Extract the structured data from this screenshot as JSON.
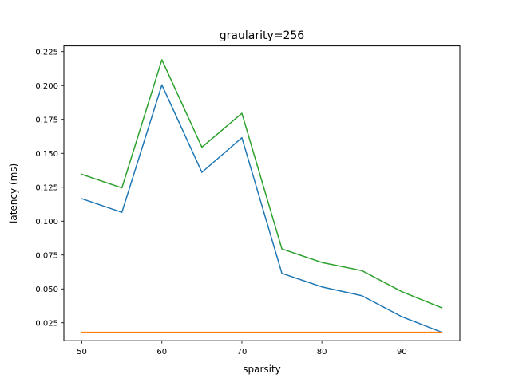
{
  "chart_data": {
    "type": "line",
    "title": "graularity=256",
    "xlabel": "sparsity",
    "ylabel": "latency (ms)",
    "xlim": [
      47.75,
      97.25
    ],
    "ylim": [
      0.0118,
      0.2292
    ],
    "x_ticks": [
      50,
      60,
      70,
      80,
      90
    ],
    "y_ticks": [
      0.025,
      0.05,
      0.075,
      0.1,
      0.125,
      0.15,
      0.175,
      0.2,
      0.225
    ],
    "y_tick_labels": [
      "0.025",
      "0.050",
      "0.075",
      "0.100",
      "0.125",
      "0.150",
      "0.175",
      "0.200",
      "0.225"
    ],
    "grid": false,
    "x": [
      50,
      55,
      60,
      65,
      70,
      75,
      80,
      85,
      90,
      95
    ],
    "series": [
      {
        "color": "#1f77b4",
        "values": [
          0.1165,
          0.1065,
          0.2005,
          0.136,
          0.1615,
          0.0615,
          0.0515,
          0.045,
          0.0295,
          0.018
        ]
      },
      {
        "color": "#ff7f0e",
        "values": [
          0.018,
          0.018,
          0.018,
          0.018,
          0.018,
          0.018,
          0.018,
          0.018,
          0.018,
          0.018
        ]
      },
      {
        "color": "#2ca02c",
        "values": [
          0.1345,
          0.1245,
          0.219,
          0.1545,
          0.1795,
          0.0795,
          0.0695,
          0.0635,
          0.048,
          0.036
        ]
      }
    ]
  }
}
